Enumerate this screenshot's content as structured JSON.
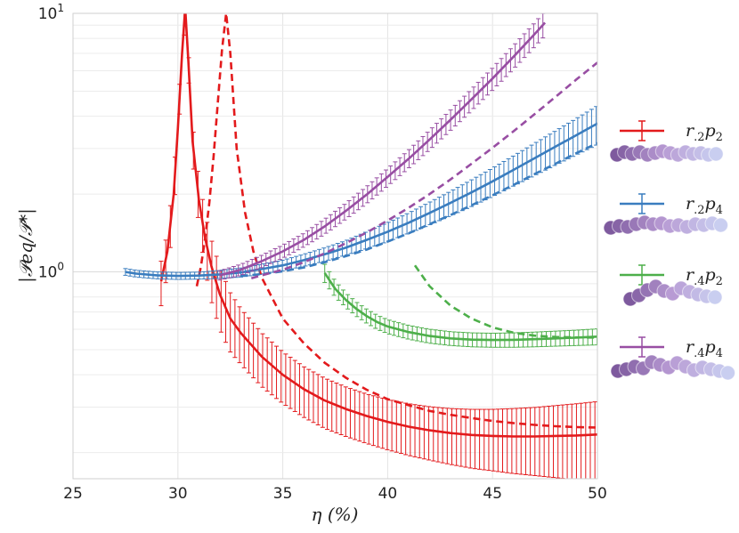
{
  "chart_data": {
    "type": "line",
    "xlabel": "η (%)",
    "ylabel": "|𝒫eq/𝒫*|",
    "xlim": [
      25,
      50
    ],
    "ylim_log10": [
      -0.8,
      1
    ],
    "y_scale": "log",
    "grid": true,
    "legend_position": "right",
    "x_ticks": [
      "25",
      "30",
      "35",
      "40",
      "45",
      "50"
    ],
    "y_ticks": [
      {
        "base": "10",
        "exp": "0",
        "value": 1
      },
      {
        "base": "10",
        "exp": "1",
        "value": 10
      }
    ],
    "series": [
      {
        "name": "r.2p2",
        "label": "r",
        "sub1": ".2",
        "p": "p",
        "sub2": "2",
        "color": "#e31a1c",
        "solid": {
          "x": [
            29.2,
            29.5,
            29.8,
            30.0,
            30.2,
            30.35,
            30.5,
            30.7,
            31.0,
            31.3,
            31.6,
            32.0,
            32.5,
            33,
            34,
            35,
            36,
            37,
            38,
            39,
            40,
            41,
            42,
            43,
            44,
            45,
            46,
            47,
            48,
            49,
            50
          ],
          "y": [
            0.92,
            1.2,
            2.0,
            3.6,
            7.0,
            10.5,
            6.5,
            3.2,
            1.9,
            1.35,
            1.05,
            0.82,
            0.66,
            0.58,
            0.47,
            0.4,
            0.352,
            0.318,
            0.295,
            0.277,
            0.263,
            0.252,
            0.244,
            0.238,
            0.234,
            0.232,
            0.231,
            0.231,
            0.232,
            0.233,
            0.235
          ],
          "err": [
            0.18,
            0.22,
            0.35,
            0.5,
            0.8,
            1.0,
            0.7,
            0.5,
            0.4,
            0.33,
            0.28,
            0.22,
            0.17,
            0.14,
            0.11,
            0.09,
            0.078,
            0.07,
            0.064,
            0.06,
            0.058,
            0.057,
            0.057,
            0.058,
            0.06,
            0.062,
            0.065,
            0.068,
            0.072,
            0.076,
            0.08
          ]
        },
        "dashed": {
          "x": [
            30.9,
            31.1,
            31.3,
            31.5,
            31.7,
            31.9,
            32.1,
            32.3,
            32.5,
            32.8,
            33.2,
            33.6,
            34,
            35,
            36,
            37,
            38,
            39,
            40,
            41,
            42,
            43,
            44,
            45,
            46,
            47,
            48,
            49,
            50
          ],
          "y": [
            0.88,
            1.05,
            1.35,
            1.85,
            2.8,
            4.5,
            7.2,
            10.0,
            7.0,
            3.0,
            1.7,
            1.2,
            0.95,
            0.66,
            0.53,
            0.445,
            0.39,
            0.35,
            0.322,
            0.305,
            0.29,
            0.28,
            0.272,
            0.265,
            0.26,
            0.256,
            0.253,
            0.251,
            0.25
          ]
        }
      },
      {
        "name": "r.2p4",
        "label": "r",
        "sub1": ".2",
        "p": "p",
        "sub2": "4",
        "color": "#3a7dbf",
        "solid": {
          "x": [
            27.5,
            28,
            29,
            30,
            31,
            32,
            33,
            34,
            35,
            36,
            37,
            38,
            39,
            40,
            41,
            42,
            43,
            44,
            45,
            46,
            47,
            48,
            49,
            50
          ],
          "y": [
            1.0,
            0.985,
            0.97,
            0.965,
            0.968,
            0.978,
            0.995,
            1.025,
            1.06,
            1.11,
            1.17,
            1.24,
            1.33,
            1.43,
            1.55,
            1.69,
            1.85,
            2.03,
            2.24,
            2.48,
            2.75,
            3.05,
            3.38,
            3.75
          ],
          "err": [
            0.03,
            0.03,
            0.03,
            0.03,
            0.03,
            0.035,
            0.04,
            0.045,
            0.05,
            0.06,
            0.07,
            0.08,
            0.1,
            0.12,
            0.14,
            0.17,
            0.2,
            0.24,
            0.28,
            0.33,
            0.39,
            0.46,
            0.54,
            0.64
          ]
        },
        "dashed": {
          "x": [
            33,
            34,
            35,
            36,
            37,
            38,
            39,
            40,
            41,
            42,
            43,
            44,
            45,
            46,
            47,
            48,
            49,
            50
          ],
          "y": [
            0.965,
            0.98,
            1.005,
            1.04,
            1.09,
            1.15,
            1.22,
            1.31,
            1.41,
            1.53,
            1.66,
            1.81,
            1.98,
            2.17,
            2.39,
            2.62,
            2.88,
            3.15
          ]
        }
      },
      {
        "name": "r.4p2",
        "label": "r",
        "sub1": ".4",
        "p": "p",
        "sub2": "2",
        "color": "#4daf4a",
        "solid": {
          "x": [
            37.0,
            37.5,
            38,
            38.5,
            39,
            39.5,
            40,
            41,
            42,
            43,
            44,
            45,
            46,
            47,
            48,
            49,
            50
          ],
          "y": [
            0.99,
            0.86,
            0.78,
            0.72,
            0.675,
            0.64,
            0.615,
            0.585,
            0.565,
            0.553,
            0.547,
            0.545,
            0.546,
            0.549,
            0.553,
            0.557,
            0.562
          ],
          "err": [
            0.08,
            0.06,
            0.05,
            0.045,
            0.042,
            0.04,
            0.038,
            0.036,
            0.035,
            0.034,
            0.034,
            0.034,
            0.035,
            0.036,
            0.037,
            0.038,
            0.04
          ]
        },
        "dashed": {
          "x": [
            41.3,
            42,
            43,
            44,
            45,
            46,
            47,
            48,
            49,
            50
          ],
          "y": [
            1.06,
            0.88,
            0.74,
            0.66,
            0.61,
            0.582,
            0.567,
            0.56,
            0.558,
            0.557
          ]
        }
      },
      {
        "name": "r.4p4",
        "label": "r",
        "sub1": ".4",
        "p": "p",
        "sub2": "4",
        "color": "#984ea3",
        "solid": {
          "x": [
            32,
            33,
            34,
            35,
            36,
            37,
            38,
            39,
            40,
            41,
            42,
            43,
            44,
            45,
            46,
            47,
            47.5
          ],
          "y": [
            0.97,
            1.02,
            1.1,
            1.2,
            1.33,
            1.5,
            1.72,
            1.99,
            2.33,
            2.74,
            3.25,
            3.88,
            4.65,
            5.6,
            6.8,
            8.3,
            9.2
          ],
          "err": [
            0.04,
            0.05,
            0.06,
            0.07,
            0.08,
            0.1,
            0.12,
            0.15,
            0.18,
            0.22,
            0.28,
            0.35,
            0.44,
            0.55,
            0.7,
            0.88,
            1.0
          ]
        },
        "dashed": {
          "x": [
            33.5,
            34,
            35,
            36,
            37,
            38,
            39,
            40,
            41,
            42,
            43,
            44,
            45,
            46,
            47,
            48,
            49,
            50
          ],
          "y": [
            0.945,
            0.97,
            1.02,
            1.09,
            1.18,
            1.29,
            1.42,
            1.58,
            1.77,
            2.0,
            2.28,
            2.62,
            3.02,
            3.5,
            4.07,
            4.75,
            5.55,
            6.45
          ]
        }
      }
    ]
  },
  "legend": {
    "bead_colors": [
      "#7e5a9e",
      "#b89bd4",
      "#c9cef0"
    ]
  }
}
